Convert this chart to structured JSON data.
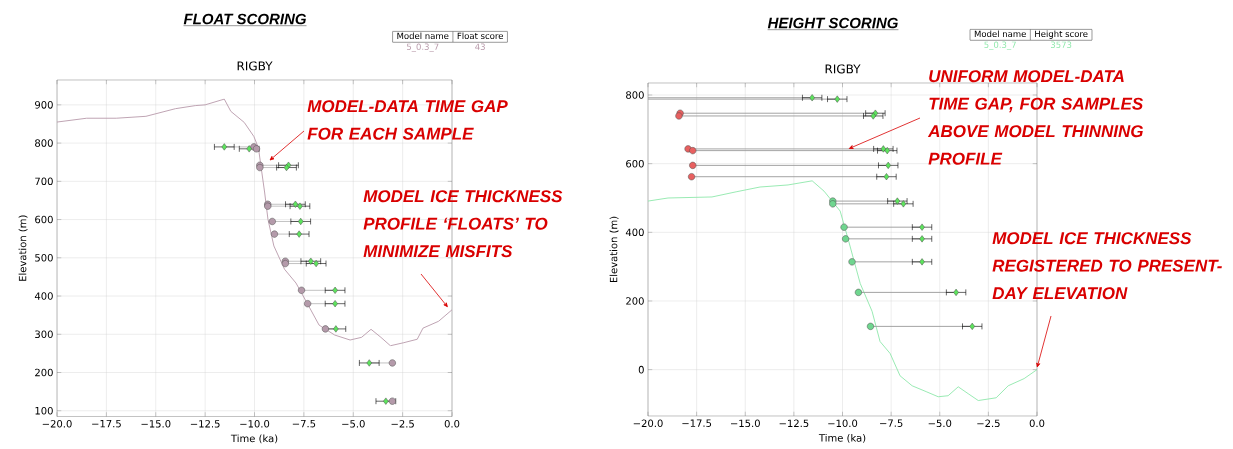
{
  "chart_data": [
    {
      "type": "line",
      "title": "FLOAT SCORING",
      "subtitle": "RIGBY",
      "xlabel": "Time (ka)",
      "ylabel": "Elevation (m)",
      "xlim": [
        -20,
        0
      ],
      "ylim": [
        85,
        965
      ],
      "xticks": [
        {
          "value": -20,
          "label": "−20.0"
        },
        {
          "value": -17.5,
          "label": "−17.5"
        },
        {
          "value": -15,
          "label": "−15.0"
        },
        {
          "value": -12.5,
          "label": "−12.5"
        },
        {
          "value": -10,
          "label": "−10.0"
        },
        {
          "value": -7.5,
          "label": "−7.5"
        },
        {
          "value": -5,
          "label": "−5.0"
        },
        {
          "value": -2.5,
          "label": "−2.5"
        },
        {
          "value": 0,
          "label": "0.0"
        }
      ],
      "yticks": [
        100,
        200,
        300,
        400,
        500,
        600,
        700,
        800,
        900
      ],
      "grid": true,
      "series": [
        {
          "type": "line",
          "color": "#b89aaa",
          "marker": "none",
          "x": [
            -20,
            -18.5,
            -17,
            -15.5,
            -14,
            -13,
            -12.5,
            -11.53,
            -11.2,
            -10.52,
            -10.03,
            -9.8,
            -9.68,
            -9.49,
            -9.32,
            -9.02,
            -8.48,
            -7.9,
            -7.31,
            -6.73,
            -5.94,
            -5.16,
            -4.58,
            -4.1,
            -3.6,
            -3.12,
            -2.44,
            -1.76,
            -1.47,
            -0.68,
            0
          ],
          "values": [
            855,
            865,
            865,
            870,
            890,
            898,
            900,
            915,
            883,
            854,
            817,
            787,
            742,
            672,
            601,
            531,
            470,
            434,
            379,
            324,
            298,
            285,
            292,
            313,
            292,
            270,
            278,
            287,
            316,
            334,
            364
          ]
        },
        {
          "type": "line",
          "color": "#bbbbbb",
          "marker": "none",
          "x": [
            -10.03,
            -11.53,
            null,
            -9.73,
            -8.28,
            null,
            -9.73,
            -8.38,
            null,
            -9.33,
            -7.93,
            null,
            -9.33,
            -7.7,
            null,
            -9.1,
            -7.66,
            null,
            -8.99,
            -7.74,
            null,
            -8.44,
            -7.15,
            null,
            -8.44,
            -6.88,
            null,
            -7.62,
            -5.92,
            null,
            -7.31,
            -5.92,
            null,
            -6.41,
            -5.88,
            null,
            -3.02,
            -4.19,
            null,
            -3.02,
            -3.35
          ],
          "values": [
            790,
            790,
            null,
            742,
            742,
            null,
            736,
            736,
            null,
            640,
            640,
            null,
            635,
            635,
            null,
            595,
            595,
            null,
            562,
            562,
            null,
            491,
            491,
            null,
            485,
            485,
            null,
            415,
            415,
            null,
            380,
            380,
            null,
            314,
            314,
            null,
            225,
            225,
            null,
            125,
            125
          ]
        },
        {
          "type": "scatter",
          "color": "#b49aaa",
          "marker": "circle",
          "x": [
            -10.03,
            -9.9,
            -9.73,
            -9.73,
            -9.33,
            -9.33,
            -9.1,
            -8.99,
            -8.44,
            -8.44,
            -7.62,
            -7.31,
            -6.41,
            -3.02,
            -3.02
          ],
          "values": [
            790,
            785,
            742,
            736,
            640,
            635,
            595,
            562,
            491,
            485,
            415,
            380,
            314,
            225,
            125
          ]
        },
        {
          "type": "scatter",
          "color": "#5de35d",
          "marker": "diamond",
          "x": [
            -11.53,
            -10.27,
            -8.28,
            -8.38,
            -7.93,
            -7.7,
            -7.66,
            -7.74,
            -7.15,
            -6.88,
            -5.92,
            -5.92,
            -5.88,
            -4.19,
            -3.35
          ],
          "values": [
            790,
            785,
            742,
            736,
            640,
            635,
            595,
            562,
            491,
            485,
            415,
            380,
            314,
            225,
            125
          ],
          "xerrors": [
            0.5,
            0.5,
            0.5,
            0.5,
            0.5,
            0.5,
            0.5,
            0.5,
            0.5,
            0.5,
            0.5,
            0.5,
            0.5,
            0.5,
            0.5
          ]
        }
      ],
      "annotations": [
        "Model name",
        "Float score",
        "5_0.3_7",
        "43",
        {
          "text": "MODEL-DATA TIME GAP FOR EACH SAMPLE",
          "x": -9.25,
          "y": 754
        },
        {
          "text": "MODEL ICE THICKNESS PROFILE ‘FLOATS’ TO MINIMIZE MISFITS",
          "x": -0.2,
          "y": 370
        }
      ]
    },
    {
      "type": "line",
      "title": "HEIGHT SCORING",
      "subtitle": "RIGBY",
      "xlabel": "Time (ka)",
      "ylabel": "Elevation (m)",
      "xlim": [
        -20,
        0
      ],
      "ylim": [
        -135,
        835
      ],
      "xticks": [
        {
          "value": -20,
          "label": "−20.0"
        },
        {
          "value": -17.5,
          "label": "−17.5"
        },
        {
          "value": -15,
          "label": "−15.0"
        },
        {
          "value": -12.5,
          "label": "−12.5"
        },
        {
          "value": -10,
          "label": "−10.0"
        },
        {
          "value": -7.5,
          "label": "−7.5"
        },
        {
          "value": -5,
          "label": "−5.0"
        },
        {
          "value": -2.5,
          "label": "−2.5"
        },
        {
          "value": 0,
          "label": "0.0"
        }
      ],
      "yticks": [
        0,
        200,
        400,
        600,
        800
      ],
      "grid": true,
      "series": [
        {
          "type": "line",
          "color": "#8de8aa",
          "marker": "none",
          "x": [
            -20,
            -18.97,
            -16.71,
            -15.47,
            -14.24,
            -12.8,
            -11.56,
            -10.95,
            -10.12,
            -9.71,
            -9.09,
            -8.48,
            -8.07,
            -7.55,
            -7.04,
            -6.42,
            -5.7,
            -5.08,
            -4.57,
            -4.05,
            -3.54,
            -3.02,
            -2.1,
            -1.48,
            -0.66,
            0
          ],
          "values": [
            491,
            500,
            503,
            518,
            532,
            538,
            550,
            520,
            462,
            380,
            251,
            170,
            82,
            47,
            -18,
            -47,
            -64,
            -79,
            -76,
            -50,
            -70,
            -90,
            -82,
            -47,
            -26,
            0
          ]
        },
        {
          "type": "line",
          "color": "#999999",
          "marker": "none",
          "x": [
            -20,
            -11.56,
            null,
            -20,
            -10.27,
            null,
            -18.35,
            -8.31,
            null,
            -18.41,
            -8.42,
            null,
            -17.94,
            -7.9,
            null,
            -17.7,
            -7.7,
            null,
            -17.7,
            -7.65,
            null,
            -17.76,
            -7.74,
            null,
            -10.5,
            -7.18,
            null,
            -10.5,
            -6.87,
            null,
            -9.92,
            -5.91,
            null,
            -9.84,
            -5.91,
            null,
            -9.51,
            -5.91,
            null,
            -9.18,
            -4.16,
            null,
            -8.56,
            -3.33
          ],
          "values": [
            792,
            792,
            null,
            788,
            788,
            null,
            747,
            747,
            null,
            739,
            739,
            null,
            643,
            643,
            null,
            638,
            638,
            null,
            595,
            595,
            null,
            562,
            562,
            null,
            491,
            491,
            null,
            483,
            483,
            null,
            415,
            415,
            null,
            381,
            381,
            null,
            314,
            314,
            null,
            225,
            225,
            null,
            126,
            126
          ]
        },
        {
          "type": "scatter",
          "color": "#e86060",
          "marker": "circle",
          "x": [
            -18.35,
            -18.41,
            -17.94,
            -17.7,
            -17.7,
            -17.76
          ],
          "values": [
            747,
            739,
            643,
            638,
            595,
            562
          ]
        },
        {
          "type": "scatter",
          "color": "#6fd68f",
          "marker": "circle",
          "x": [
            -10.5,
            -10.5,
            -9.92,
            -9.84,
            -9.51,
            -9.18,
            -8.56
          ],
          "values": [
            491,
            483,
            415,
            381,
            314,
            225,
            126
          ]
        },
        {
          "type": "scatter",
          "color": "#5de35d",
          "marker": "diamond",
          "x": [
            -11.56,
            -10.27,
            -8.31,
            -8.42,
            -7.9,
            -7.7,
            -7.65,
            -7.74,
            -7.18,
            -6.87,
            -5.91,
            -5.91,
            -5.91,
            -4.16,
            -3.33
          ],
          "values": [
            792,
            788,
            747,
            739,
            643,
            638,
            595,
            562,
            491,
            483,
            415,
            381,
            314,
            225,
            126
          ],
          "xerrors": [
            0.5,
            0.5,
            0.5,
            0.5,
            0.5,
            0.5,
            0.5,
            0.5,
            0.5,
            0.5,
            0.5,
            0.5,
            0.5,
            0.5,
            0.5
          ]
        }
      ],
      "annotations": [
        "Model name",
        "Height score",
        "5_0.3_7",
        "3573",
        {
          "text": "UNIFORM MODEL-DATA TIME GAP, FOR SAMPLES ABOVE MODEL THINNING PROFILE",
          "x": -9.7,
          "y": 643
        },
        {
          "text": "MODEL ICE THICKNESS REGISTERED TO PRESENT-DAY ELEVATION",
          "x": 0,
          "y": 5
        }
      ]
    }
  ]
}
